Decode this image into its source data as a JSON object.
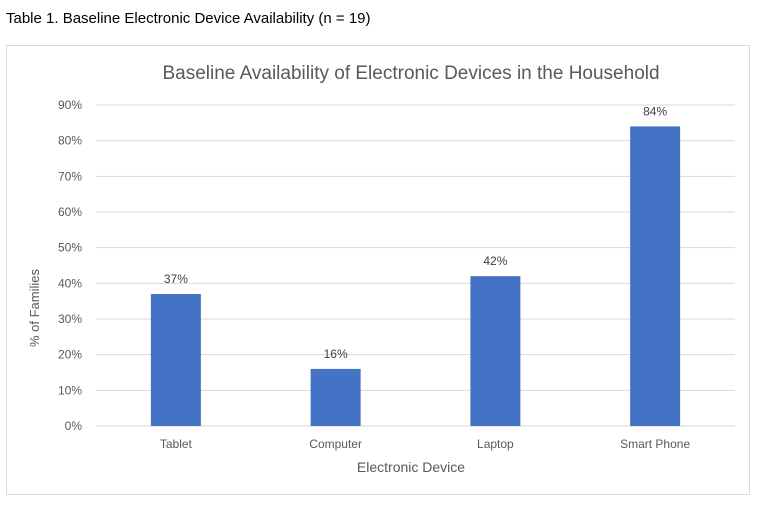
{
  "caption": "Table 1. Baseline Electronic Device Availability (n = 19)",
  "colors": {
    "bar": "#4472C4",
    "grid": "#d9d9d9",
    "axis_text": "#595959",
    "title_text": "#595959",
    "label_text": "#404040"
  },
  "chart_data": {
    "type": "bar",
    "title": "Baseline Availability of Electronic Devices in the Household",
    "xlabel": "Electronic Device",
    "ylabel": "% of Families",
    "categories": [
      "Tablet",
      "Computer",
      "Laptop",
      "Smart Phone"
    ],
    "values": [
      37,
      16,
      42,
      84
    ],
    "value_labels": [
      "37%",
      "16%",
      "42%",
      "84%"
    ],
    "ylim": [
      0,
      90
    ],
    "yticks": [
      0,
      10,
      20,
      30,
      40,
      50,
      60,
      70,
      80,
      90
    ],
    "ytick_labels": [
      "0%",
      "10%",
      "20%",
      "30%",
      "40%",
      "50%",
      "60%",
      "70%",
      "80%",
      "90%"
    ],
    "grid": true,
    "legend": "none"
  }
}
